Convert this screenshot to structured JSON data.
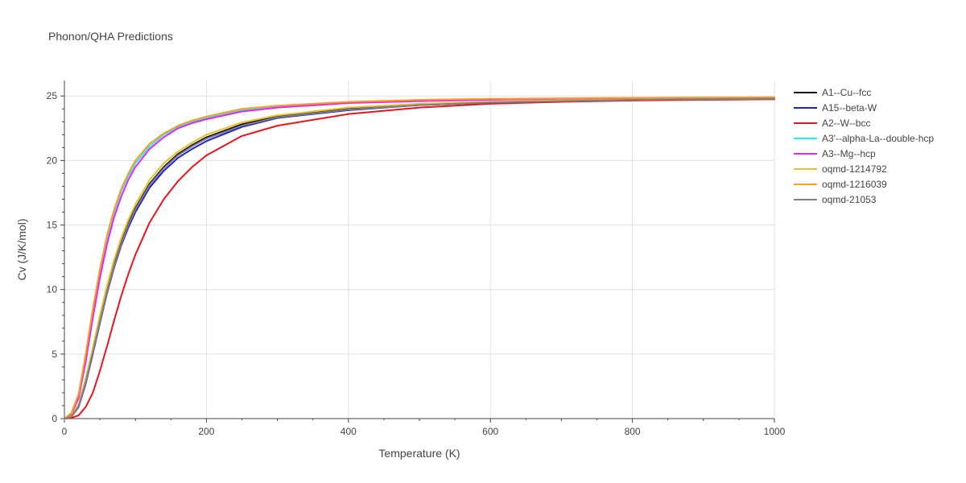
{
  "chart_data": {
    "type": "line",
    "title": "Phonon/QHA Predictions",
    "xlabel": "Temperature (K)",
    "ylabel": "Cv (J/K/mol)",
    "xlim": [
      0,
      1000
    ],
    "ylim": [
      0,
      26.2
    ],
    "x_ticks": [
      0,
      200,
      400,
      600,
      800,
      1000
    ],
    "y_ticks": [
      0,
      5,
      10,
      15,
      20,
      25
    ],
    "grid": true,
    "legend_position": "right",
    "series": [
      {
        "name": "A1--Cu--fcc",
        "color": "#111111",
        "x": [
          0,
          10,
          20,
          30,
          40,
          50,
          60,
          70,
          80,
          90,
          100,
          120,
          140,
          160,
          180,
          200,
          250,
          300,
          400,
          500,
          600,
          700,
          800,
          900,
          1000
        ],
        "y": [
          0,
          0.15,
          1.0,
          2.9,
          5.2,
          7.6,
          9.9,
          11.9,
          13.6,
          15.1,
          16.3,
          18.2,
          19.5,
          20.5,
          21.2,
          21.8,
          22.8,
          23.4,
          24.0,
          24.3,
          24.5,
          24.6,
          24.7,
          24.75,
          24.8
        ]
      },
      {
        "name": "A15--beta-W",
        "color": "#1f1fe0",
        "x": [
          0,
          10,
          20,
          30,
          40,
          50,
          60,
          70,
          80,
          90,
          100,
          120,
          140,
          160,
          180,
          200,
          250,
          300,
          400,
          500,
          600,
          700,
          800,
          900,
          1000
        ],
        "y": [
          0,
          0.15,
          0.9,
          2.7,
          5.0,
          7.4,
          9.7,
          11.7,
          13.4,
          14.8,
          16.0,
          17.9,
          19.2,
          20.2,
          20.9,
          21.5,
          22.6,
          23.3,
          23.9,
          24.3,
          24.5,
          24.6,
          24.7,
          24.75,
          24.8
        ]
      },
      {
        "name": "A2--W--bcc",
        "color": "#e8141c",
        "x": [
          0,
          10,
          20,
          30,
          40,
          50,
          60,
          70,
          80,
          90,
          100,
          120,
          140,
          160,
          180,
          200,
          250,
          300,
          400,
          500,
          600,
          700,
          800,
          900,
          1000
        ],
        "y": [
          0,
          0.05,
          0.25,
          0.9,
          2.0,
          3.7,
          5.6,
          7.6,
          9.5,
          11.2,
          12.7,
          15.2,
          17.0,
          18.4,
          19.5,
          20.4,
          21.9,
          22.7,
          23.6,
          24.1,
          24.4,
          24.55,
          24.65,
          24.7,
          24.75
        ]
      },
      {
        "name": "A3'--alpha-La--double-hcp",
        "color": "#22f0f0",
        "x": [
          0,
          10,
          20,
          30,
          40,
          50,
          60,
          70,
          80,
          90,
          100,
          120,
          140,
          160,
          180,
          200,
          250,
          300,
          400,
          500,
          600,
          700,
          800,
          900,
          1000
        ],
        "y": [
          0,
          0.4,
          1.8,
          4.8,
          8.3,
          11.4,
          14.0,
          16.0,
          17.6,
          18.8,
          19.8,
          21.1,
          22.0,
          22.6,
          23.0,
          23.3,
          23.9,
          24.2,
          24.5,
          24.65,
          24.75,
          24.8,
          24.85,
          24.88,
          24.9
        ]
      },
      {
        "name": "A3--Mg--hcp",
        "color": "#ee22ee",
        "x": [
          0,
          10,
          20,
          30,
          40,
          50,
          60,
          70,
          80,
          90,
          100,
          120,
          140,
          160,
          180,
          200,
          250,
          300,
          400,
          500,
          600,
          700,
          800,
          900,
          1000
        ],
        "y": [
          0,
          0.35,
          1.6,
          4.4,
          7.8,
          10.9,
          13.5,
          15.6,
          17.2,
          18.5,
          19.5,
          20.9,
          21.8,
          22.5,
          22.9,
          23.2,
          23.8,
          24.1,
          24.45,
          24.6,
          24.7,
          24.78,
          24.82,
          24.86,
          24.88
        ]
      },
      {
        "name": "oqmd-1214792",
        "color": "#e8c030",
        "x": [
          0,
          10,
          20,
          30,
          40,
          50,
          60,
          70,
          80,
          90,
          100,
          120,
          140,
          160,
          180,
          200,
          250,
          300,
          400,
          500,
          600,
          700,
          800,
          900,
          1000
        ],
        "y": [
          0,
          0.2,
          1.1,
          3.1,
          5.5,
          8.0,
          10.3,
          12.3,
          14.0,
          15.4,
          16.6,
          18.5,
          19.8,
          20.7,
          21.4,
          22.0,
          22.95,
          23.5,
          24.1,
          24.4,
          24.55,
          24.65,
          24.72,
          24.76,
          24.8
        ]
      },
      {
        "name": "oqmd-1216039",
        "color": "#f5a020",
        "x": [
          0,
          10,
          20,
          30,
          40,
          50,
          60,
          70,
          80,
          90,
          100,
          120,
          140,
          160,
          180,
          200,
          250,
          300,
          400,
          500,
          600,
          700,
          800,
          900,
          1000
        ],
        "y": [
          0,
          0.45,
          1.9,
          5.0,
          8.5,
          11.6,
          14.2,
          16.2,
          17.8,
          19.0,
          20.0,
          21.3,
          22.1,
          22.7,
          23.1,
          23.4,
          24.0,
          24.25,
          24.55,
          24.7,
          24.78,
          24.82,
          24.86,
          24.88,
          24.9
        ]
      },
      {
        "name": "oqmd-21053",
        "color": "#808080",
        "x": [
          0,
          10,
          20,
          30,
          40,
          50,
          60,
          70,
          80,
          90,
          100,
          120,
          140,
          160,
          180,
          200,
          250,
          300,
          400,
          500,
          600,
          700,
          800,
          900,
          1000
        ],
        "y": [
          0,
          0.15,
          0.95,
          2.8,
          5.1,
          7.5,
          9.8,
          11.8,
          13.5,
          15.0,
          16.2,
          18.1,
          19.4,
          20.4,
          21.1,
          21.7,
          22.7,
          23.35,
          23.95,
          24.3,
          24.5,
          24.6,
          24.7,
          24.75,
          24.8
        ]
      }
    ]
  }
}
